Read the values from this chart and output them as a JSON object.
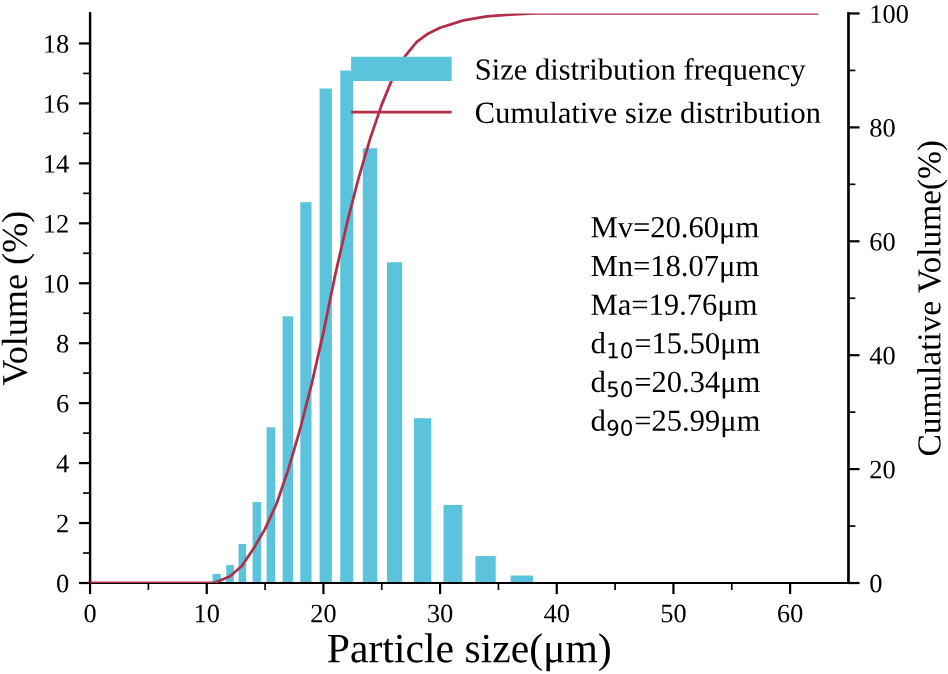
{
  "chart_data": {
    "type": "bar",
    "xlabel": "Particle size(μm)",
    "ylabel": "Volume (%)",
    "y2label": "Cumulative Volume(%)",
    "series": [
      {
        "name": "Size distribution frequency",
        "color": "#5bc4dc",
        "x": [
          10.85,
          12.0,
          13.05,
          14.3,
          15.5,
          16.95,
          18.5,
          20.2,
          22.0,
          24.0,
          26.1,
          28.5,
          31.1,
          33.9,
          37.0
        ],
        "values": [
          0.3,
          0.6,
          1.3,
          2.7,
          5.2,
          8.9,
          12.7,
          16.5,
          17.1,
          14.5,
          10.7,
          5.5,
          2.6,
          0.9,
          0.25
        ]
      },
      {
        "name": "Cumulative size distribution",
        "type": "line",
        "axis": "y2",
        "color": "#b0304a",
        "x": [
          0,
          10.5,
          11,
          12,
          13,
          14,
          15,
          16,
          17,
          18,
          19,
          20,
          21,
          22,
          23,
          24,
          25,
          26,
          27,
          28,
          29,
          30,
          32,
          34,
          36,
          38,
          62.3
        ],
        "values": [
          0,
          0,
          0.3,
          1.2,
          3,
          6,
          9.5,
          14,
          20,
          27,
          35,
          44,
          54,
          63,
          71,
          78,
          84,
          89,
          92.5,
          95,
          96.5,
          97.5,
          98.8,
          99.5,
          99.8,
          100,
          100
        ]
      }
    ],
    "xlim": [
      0,
      65
    ],
    "xticks": [
      0,
      {
        "value": 5,
        "label": null
      },
      10,
      {
        "value": 15,
        "label": null
      },
      20,
      {
        "value": 25,
        "label": null
      },
      30,
      {
        "value": 35,
        "label": null
      },
      40,
      {
        "value": 45,
        "label": null
      },
      50,
      {
        "value": 55,
        "label": null
      },
      60
    ],
    "ylim": [
      0,
      19
    ],
    "yticks": [
      0,
      {
        "value": 1,
        "label": null
      },
      2,
      {
        "value": 3,
        "label": null
      },
      4,
      {
        "value": 5,
        "label": null
      },
      6,
      {
        "value": 7,
        "label": null
      },
      8,
      {
        "value": 9,
        "label": null
      },
      10,
      {
        "value": 11,
        "label": null
      },
      12,
      {
        "value": 13,
        "label": null
      },
      14,
      {
        "value": 15,
        "label": null
      },
      16,
      {
        "value": 17,
        "label": null
      },
      18
    ],
    "y2lim": [
      0,
      100
    ],
    "y2ticks": [
      0,
      {
        "value": 10,
        "label": null
      },
      20,
      {
        "value": 30,
        "label": null
      },
      40,
      {
        "value": 50,
        "label": null
      },
      60,
      {
        "value": 70,
        "label": null
      },
      80,
      {
        "value": 90,
        "label": null
      },
      100
    ],
    "legend": "top right",
    "grid": false,
    "annotations": [
      "Mv=20.60μm",
      "Mn=18.07μm",
      "Ma=19.76μm",
      "d$_{10}$=15.50μm",
      "d$_{50}$=20.34μm",
      "d$_{90}$=25.99μm"
    ]
  }
}
